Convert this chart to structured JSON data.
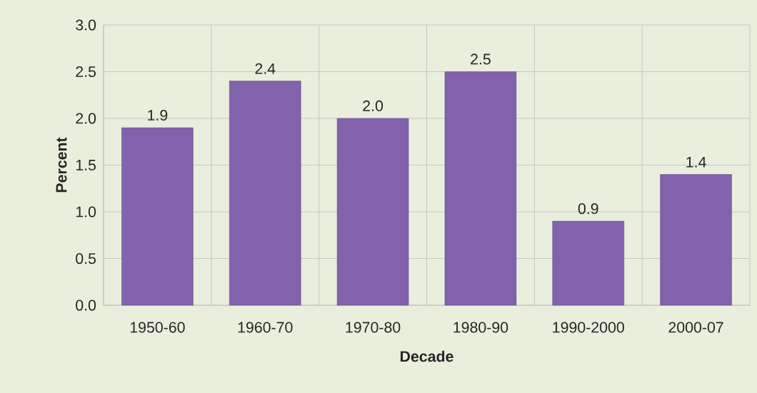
{
  "chart_data": {
    "type": "bar",
    "xlabel": "Decade",
    "ylabel": "Percent",
    "categories": [
      "1950-60",
      "1960-70",
      "1970-80",
      "1980-90",
      "1990-2000",
      "2000-07"
    ],
    "values": [
      1.9,
      2.4,
      2.0,
      2.5,
      0.9,
      1.4
    ],
    "color": "#8262ad",
    "ylim": [
      0,
      3
    ],
    "yticks": [
      {
        "value": 0,
        "label": "0.0"
      },
      {
        "value": 0.5,
        "label": "0.5"
      },
      {
        "value": 1,
        "label": "1.0"
      },
      {
        "value": 1.5,
        "label": "1.5"
      },
      {
        "value": 2,
        "label": "2.0"
      },
      {
        "value": 2.5,
        "label": "2.5"
      },
      {
        "value": 3,
        "label": "3.0"
      }
    ],
    "value_labels": [
      "1.9",
      "2.4",
      "2.0",
      "2.5",
      "0.9",
      "1.4"
    ],
    "grid": true
  }
}
